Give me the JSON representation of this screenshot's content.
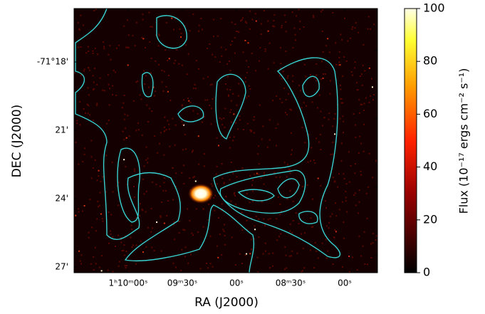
{
  "chart_data": {
    "type": "image",
    "xlabel": "RA (J2000)",
    "ylabel": "DEC (J2000)",
    "xticklabels": [
      "1ʰ10ᵐ00ˢ",
      "09ᵐ30ˢ",
      "00ˢ",
      "08ᵐ30ˢ",
      "00ˢ"
    ],
    "yticklabels": [
      "-71°18'",
      "21'",
      "24'",
      "27'"
    ],
    "colorbar_label": "Flux (10⁻¹⁷ ergs cm⁻² s⁻¹)",
    "clim": [
      0,
      100
    ],
    "cticks": [
      0,
      20,
      40,
      60,
      80,
      100
    ],
    "cmap": "afmhot",
    "contour_color": "#38d0d0"
  }
}
